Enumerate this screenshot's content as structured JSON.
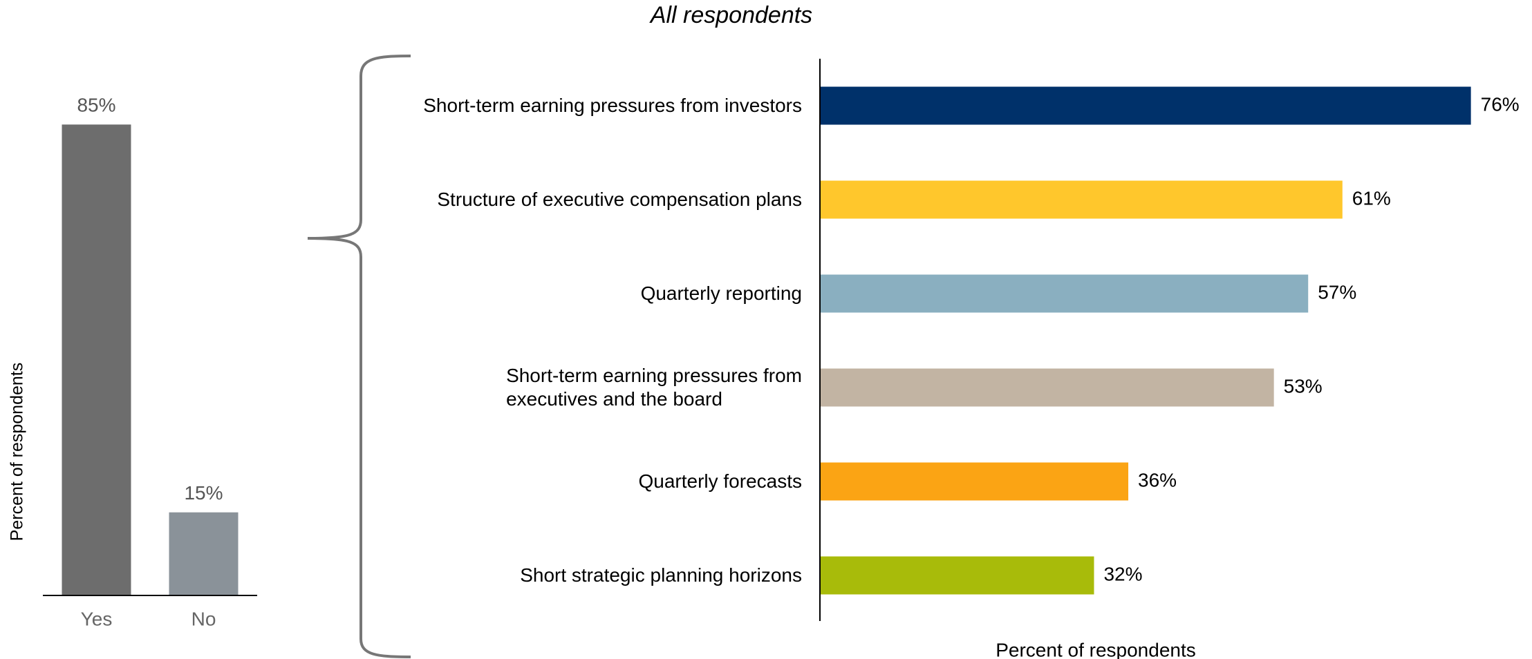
{
  "chart_data": [
    {
      "type": "bar",
      "ylabel": "Percent of respondents",
      "categories": [
        "Yes",
        "No"
      ],
      "values": [
        85,
        15
      ],
      "value_labels": [
        "85%",
        "15%"
      ],
      "colors": [
        "#6d6d6d",
        "#8a9299"
      ],
      "ylim": [
        0,
        100
      ]
    },
    {
      "type": "barh",
      "title": "All respondents",
      "xlabel": "Percent of respondents",
      "categories": [
        "Short-term earning pressures from investors",
        "Structure of executive compensation plans",
        "Quarterly reporting",
        "Short-term earning pressures from\nexecutives and the board",
        "Quarterly forecasts",
        "Short strategic planning horizons"
      ],
      "values": [
        76,
        61,
        57,
        53,
        36,
        32
      ],
      "value_labels": [
        "76%",
        "61%",
        "57%",
        "53%",
        "36%",
        "32%"
      ],
      "colors": [
        "#00316a",
        "#ffc72c",
        "#8aafc0",
        "#c2b4a3",
        "#fba414",
        "#a8bb0a"
      ],
      "xlim": [
        0,
        100
      ]
    }
  ]
}
